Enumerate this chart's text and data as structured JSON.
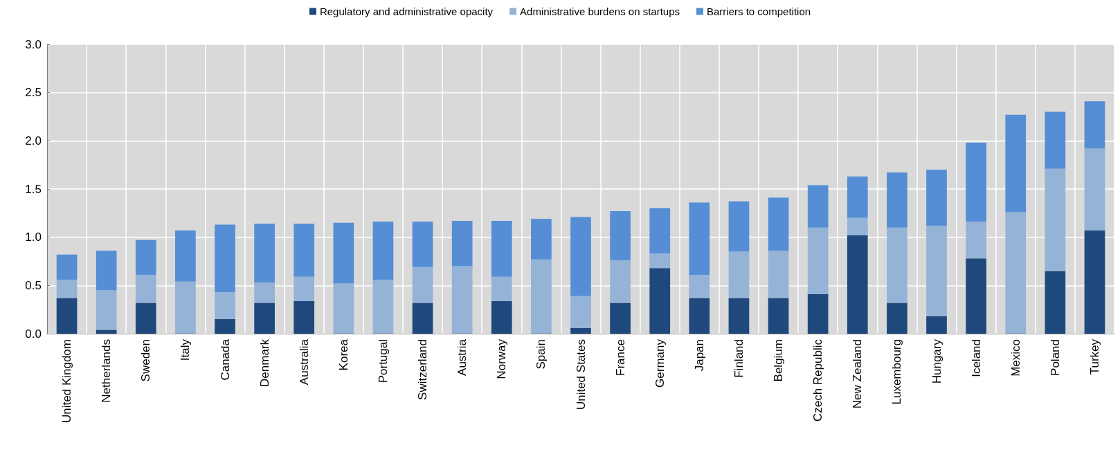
{
  "chart_data": {
    "type": "bar",
    "stacked": true,
    "categories": [
      "United Kingdom",
      "Netherlands",
      "Sweden",
      "Italy",
      "Canada",
      "Denmark",
      "Australia",
      "Korea",
      "Portugal",
      "Switzerland",
      "Austria",
      "Norway",
      "Spain",
      "United States",
      "France",
      "Germany",
      "Japan",
      "Finland",
      "Belgium",
      "Czech Republic",
      "New Zealand",
      "Luxembourg",
      "Hungary",
      "Iceland",
      "Mexico",
      "Poland",
      "Turkey"
    ],
    "series": [
      {
        "name": "Regulatory and administrative opacity",
        "color": "#1f497d",
        "values": [
          0.37,
          0.04,
          0.32,
          0,
          0.15,
          0.32,
          0.34,
          0,
          0,
          0.32,
          0,
          0.34,
          0,
          0.06,
          0.32,
          0.68,
          0.37,
          0.37,
          0.37,
          0.41,
          1.02,
          0.32,
          0.18,
          0.78,
          0,
          0.65,
          1.07
        ]
      },
      {
        "name": "Administrative burdens on startups",
        "color": "#95b3d7",
        "values": [
          0.19,
          0.41,
          0.29,
          0.54,
          0.28,
          0.21,
          0.25,
          0.52,
          0.56,
          0.37,
          0.7,
          0.25,
          0.77,
          0.33,
          0.44,
          0.15,
          0.24,
          0.48,
          0.49,
          0.69,
          0.18,
          0.78,
          0.94,
          0.38,
          1.26,
          1.06,
          0.85
        ]
      },
      {
        "name": "Barriers to competition",
        "color": "#558ed5",
        "values": [
          0.26,
          0.41,
          0.36,
          0.53,
          0.7,
          0.61,
          0.55,
          0.63,
          0.6,
          0.47,
          0.47,
          0.58,
          0.42,
          0.82,
          0.51,
          0.47,
          0.75,
          0.52,
          0.55,
          0.44,
          0.43,
          0.57,
          0.58,
          0.82,
          1.01,
          0.59,
          0.49
        ]
      }
    ],
    "ylim": [
      0,
      3
    ],
    "yticks": [
      {
        "value": 0,
        "label": "0.0"
      },
      {
        "value": 0.5,
        "label": "0.5"
      },
      {
        "value": 1,
        "label": "1.0"
      },
      {
        "value": 1.5,
        "label": "1.5"
      },
      {
        "value": 2,
        "label": "2.0"
      },
      {
        "value": 2.5,
        "label": "2.5"
      },
      {
        "value": 3,
        "label": "3.0"
      }
    ],
    "grid": true,
    "legend": "top"
  }
}
